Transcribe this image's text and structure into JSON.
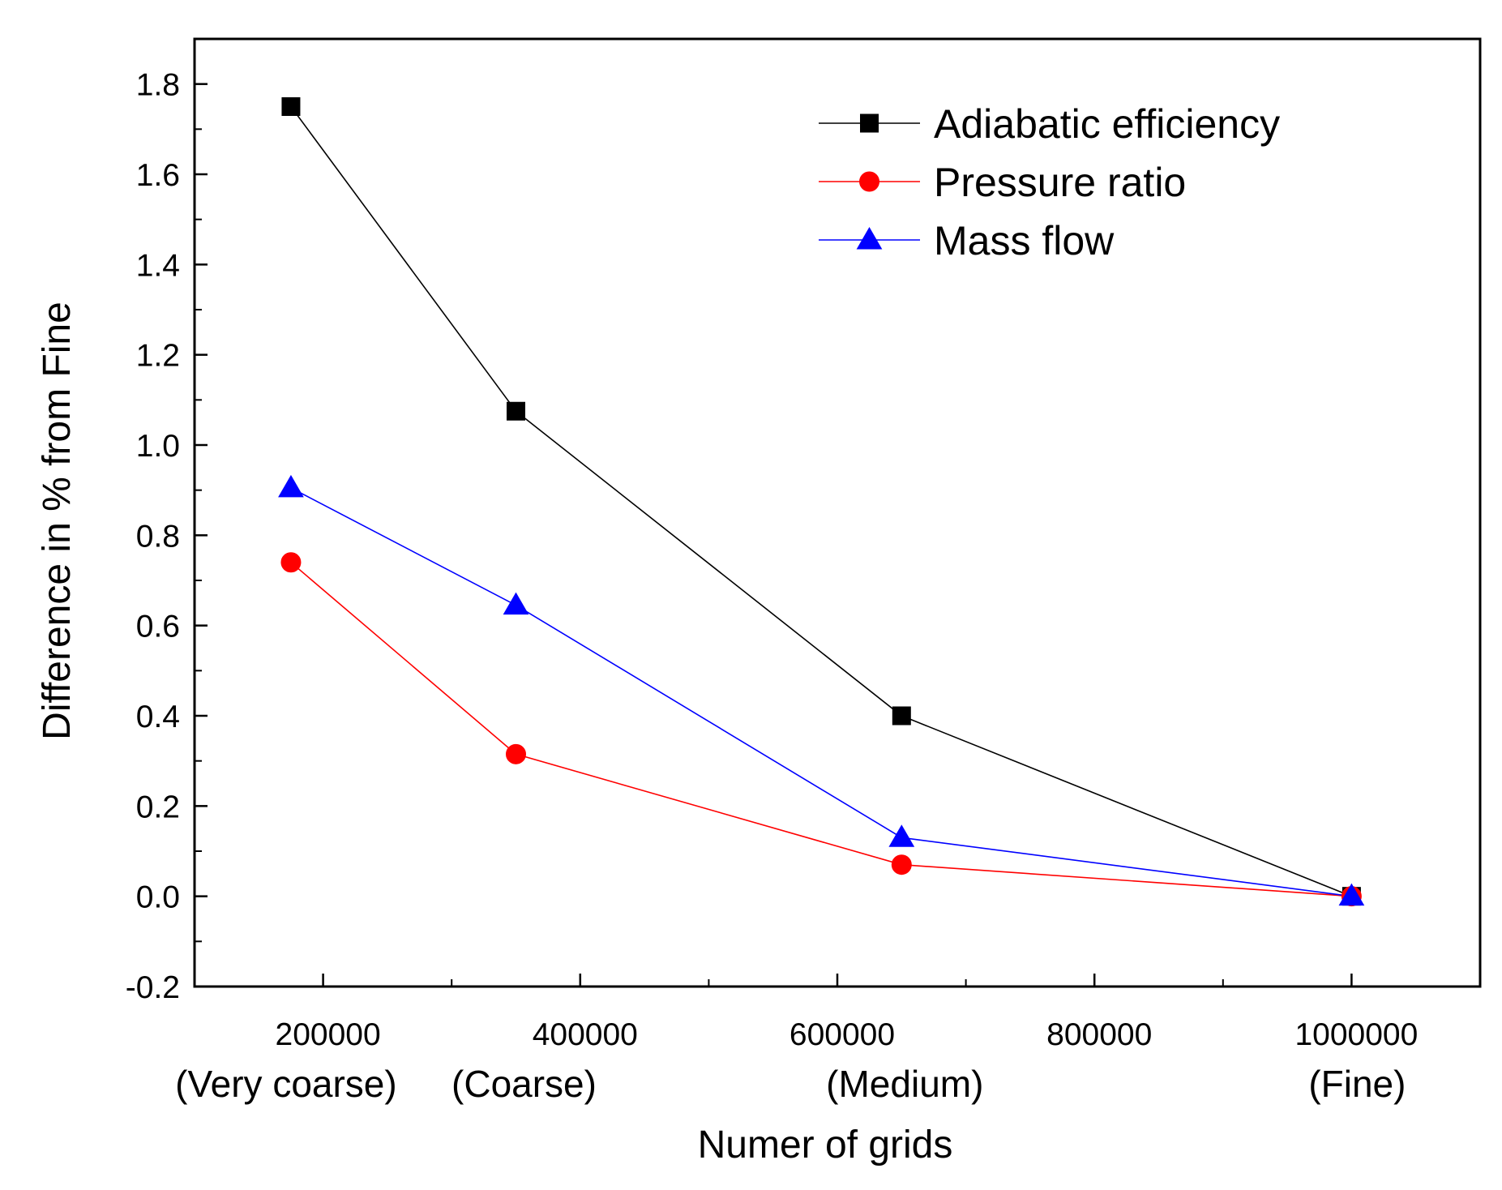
{
  "chart_data": {
    "type": "line",
    "title": "",
    "xlabel": "Numer of grids",
    "ylabel": "Difference in % from Fine",
    "xlim": [
      100000,
      1100000
    ],
    "ylim": [
      -0.2,
      1.9
    ],
    "x_ticks": [
      200000,
      400000,
      600000,
      800000,
      1000000
    ],
    "x_tick_labels": [
      "200000",
      "400000",
      "600000",
      "800000",
      "1000000"
    ],
    "y_ticks": [
      -0.2,
      0.0,
      0.2,
      0.4,
      0.6,
      0.8,
      1.0,
      1.2,
      1.4,
      1.6,
      1.8
    ],
    "y_tick_labels": [
      "-0.2",
      "0.0",
      "0.2",
      "0.4",
      "0.6",
      "0.8",
      "1.0",
      "1.2",
      "1.4",
      "1.6",
      "1.8"
    ],
    "categories": [
      {
        "x": 175000,
        "label": "(Very coarse)"
      },
      {
        "x": 350000,
        "label": "(Coarse)"
      },
      {
        "x": 650000,
        "label": "(Medium)"
      },
      {
        "x": 1000000,
        "label": "(Fine)"
      }
    ],
    "legend_position": "top-right",
    "series": [
      {
        "name": "Adiabatic efficiency",
        "color": "#000000",
        "marker": "square",
        "x": [
          175000,
          350000,
          650000,
          1000000
        ],
        "y": [
          1.75,
          1.075,
          0.4,
          0.0
        ]
      },
      {
        "name": "Pressure ratio",
        "color": "#ff0000",
        "marker": "circle",
        "x": [
          175000,
          350000,
          650000,
          1000000
        ],
        "y": [
          0.74,
          0.315,
          0.07,
          0.0
        ]
      },
      {
        "name": "Mass flow",
        "color": "#0000ff",
        "marker": "triangle",
        "x": [
          175000,
          350000,
          650000,
          1000000
        ],
        "y": [
          0.905,
          0.645,
          0.13,
          0.0
        ]
      }
    ]
  }
}
